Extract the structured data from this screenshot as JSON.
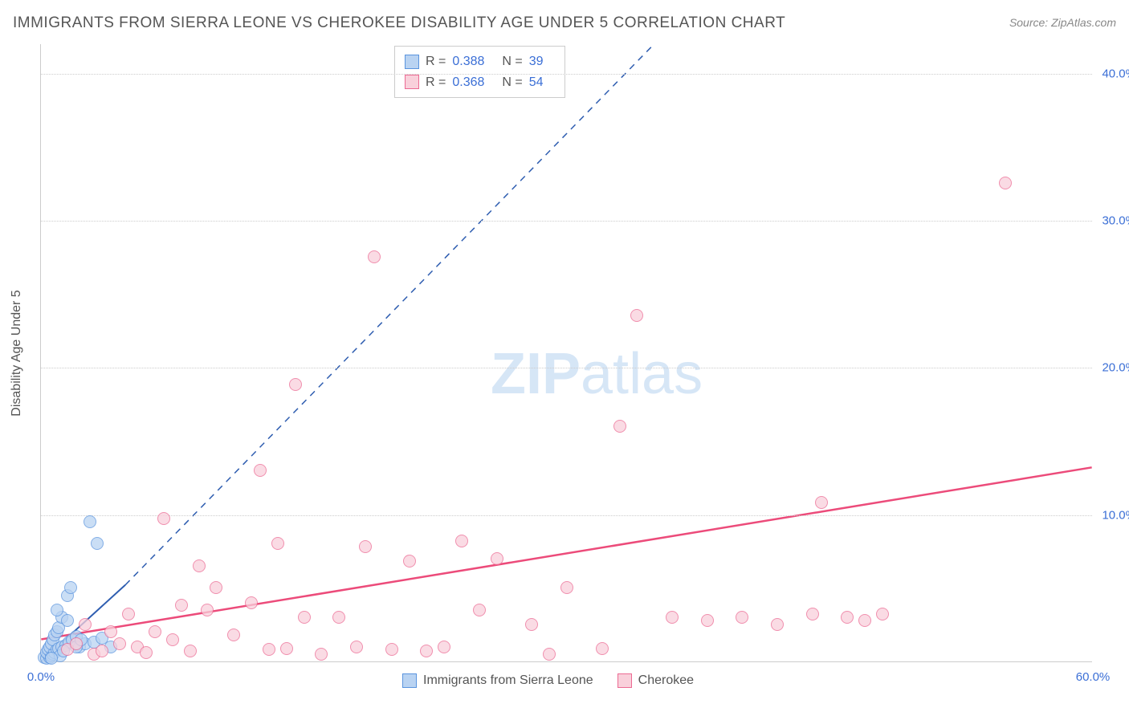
{
  "title": "IMMIGRANTS FROM SIERRA LEONE VS CHEROKEE DISABILITY AGE UNDER 5 CORRELATION CHART",
  "source": "Source: ZipAtlas.com",
  "ylabel": "Disability Age Under 5",
  "watermark_bold": "ZIP",
  "watermark_thin": "atlas",
  "chart": {
    "type": "scatter",
    "xlim": [
      0,
      60
    ],
    "ylim": [
      0,
      42
    ],
    "xticks": [
      {
        "v": 0,
        "l": "0.0%"
      },
      {
        "v": 60,
        "l": "60.0%"
      }
    ],
    "yticks": [
      {
        "v": 10,
        "l": "10.0%"
      },
      {
        "v": 20,
        "l": "20.0%"
      },
      {
        "v": 30,
        "l": "30.0%"
      },
      {
        "v": 40,
        "l": "40.0%"
      }
    ],
    "grid_color": "#cccccc",
    "background_color": "#ffffff",
    "marker_radius": 8,
    "marker_stroke_width": 1.5,
    "series": [
      {
        "name": "Immigrants from Sierra Leone",
        "color_fill": "#b9d3f2",
        "color_stroke": "#5a94de",
        "R": "0.388",
        "N": "39",
        "trend": {
          "x1": 0,
          "y1": 0,
          "x2": 4.8,
          "y2": 5.2,
          "dash_from_x": 4.8,
          "dash_to_x": 35,
          "dash_to_y": 42,
          "color": "#2e5db0",
          "width": 2
        },
        "points": [
          [
            0.2,
            0.3
          ],
          [
            0.3,
            0.2
          ],
          [
            0.4,
            0.5
          ],
          [
            0.5,
            0.3
          ],
          [
            0.3,
            0.6
          ],
          [
            0.6,
            0.4
          ],
          [
            0.4,
            0.8
          ],
          [
            0.7,
            0.5
          ],
          [
            0.5,
            1.0
          ],
          [
            0.8,
            0.6
          ],
          [
            0.6,
            1.2
          ],
          [
            0.9,
            0.8
          ],
          [
            0.7,
            1.5
          ],
          [
            1.0,
            0.9
          ],
          [
            0.8,
            1.8
          ],
          [
            1.2,
            1.0
          ],
          [
            0.9,
            2.0
          ],
          [
            1.4,
            1.1
          ],
          [
            1.0,
            2.3
          ],
          [
            1.6,
            1.3
          ],
          [
            1.1,
            0.4
          ],
          [
            1.8,
            1.5
          ],
          [
            1.3,
            0.7
          ],
          [
            2.0,
            1.7
          ],
          [
            1.5,
            4.5
          ],
          [
            2.2,
            1.0
          ],
          [
            1.7,
            5.0
          ],
          [
            2.5,
            1.2
          ],
          [
            2.0,
            1.0
          ],
          [
            3.0,
            1.3
          ],
          [
            2.3,
            1.5
          ],
          [
            3.5,
            1.6
          ],
          [
            2.8,
            9.5
          ],
          [
            4.0,
            1.0
          ],
          [
            3.2,
            8.0
          ],
          [
            1.2,
            3.0
          ],
          [
            0.9,
            3.5
          ],
          [
            1.5,
            2.8
          ],
          [
            0.6,
            0.2
          ]
        ]
      },
      {
        "name": "Cherokee",
        "color_fill": "#f9d0db",
        "color_stroke": "#ec6a93",
        "R": "0.368",
        "N": "54",
        "trend": {
          "x1": 0,
          "y1": 1.5,
          "x2": 60,
          "y2": 13.2,
          "color": "#ec4b7a",
          "width": 2.5
        },
        "points": [
          [
            1.5,
            0.8
          ],
          [
            2.0,
            1.2
          ],
          [
            2.5,
            2.5
          ],
          [
            3.0,
            0.5
          ],
          [
            3.5,
            0.7
          ],
          [
            4.0,
            2.0
          ],
          [
            4.5,
            1.2
          ],
          [
            5.0,
            3.2
          ],
          [
            5.5,
            1.0
          ],
          [
            6.0,
            0.6
          ],
          [
            6.5,
            2.0
          ],
          [
            7.0,
            9.7
          ],
          [
            7.5,
            1.5
          ],
          [
            8.0,
            3.8
          ],
          [
            8.5,
            0.7
          ],
          [
            9.0,
            6.5
          ],
          [
            9.5,
            3.5
          ],
          [
            10.0,
            5.0
          ],
          [
            11.0,
            1.8
          ],
          [
            12.0,
            4.0
          ],
          [
            12.5,
            13.0
          ],
          [
            13.0,
            0.8
          ],
          [
            13.5,
            8.0
          ],
          [
            14.0,
            0.9
          ],
          [
            14.5,
            18.8
          ],
          [
            15.0,
            3.0
          ],
          [
            16.0,
            0.5
          ],
          [
            17.0,
            3.0
          ],
          [
            18.0,
            1.0
          ],
          [
            18.5,
            7.8
          ],
          [
            19.0,
            27.5
          ],
          [
            20.0,
            0.8
          ],
          [
            21.0,
            6.8
          ],
          [
            22.0,
            0.7
          ],
          [
            23.0,
            1.0
          ],
          [
            24.0,
            8.2
          ],
          [
            25.0,
            3.5
          ],
          [
            26.0,
            7.0
          ],
          [
            28.0,
            2.5
          ],
          [
            29.0,
            0.5
          ],
          [
            30.0,
            5.0
          ],
          [
            32.0,
            0.9
          ],
          [
            33.0,
            16.0
          ],
          [
            34.0,
            23.5
          ],
          [
            36.0,
            3.0
          ],
          [
            38.0,
            2.8
          ],
          [
            40.0,
            3.0
          ],
          [
            42.0,
            2.5
          ],
          [
            44.0,
            3.2
          ],
          [
            44.5,
            10.8
          ],
          [
            46.0,
            3.0
          ],
          [
            47.0,
            2.8
          ],
          [
            48.0,
            3.2
          ],
          [
            55.0,
            32.5
          ]
        ]
      }
    ]
  },
  "legend_bottom": [
    {
      "label": "Immigrants from Sierra Leone",
      "fill": "#b9d3f2",
      "stroke": "#5a94de"
    },
    {
      "label": "Cherokee",
      "fill": "#f9d0db",
      "stroke": "#ec6a93"
    }
  ]
}
